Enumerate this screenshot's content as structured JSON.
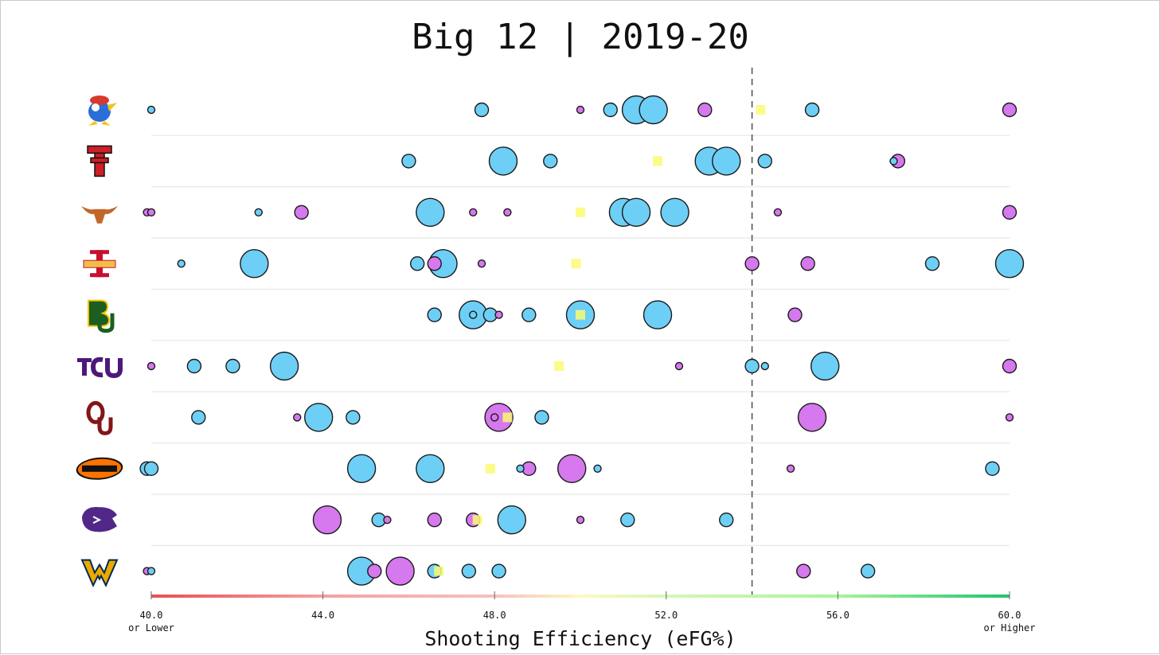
{
  "chart_data": {
    "type": "scatter",
    "title": "Big 12 | 2019-20",
    "xlabel": "Shooting Efficiency (eFG%)",
    "xlim": [
      40.0,
      60.0
    ],
    "ticks": [
      {
        "value": 40.0,
        "label": "40.0",
        "sublabel": "or Lower"
      },
      {
        "value": 44.0,
        "label": "44.0",
        "sublabel": ""
      },
      {
        "value": 48.0,
        "label": "48.0",
        "sublabel": ""
      },
      {
        "value": 52.0,
        "label": "52.0",
        "sublabel": ""
      },
      {
        "value": 56.0,
        "label": "56.0",
        "sublabel": ""
      },
      {
        "value": 60.0,
        "label": "60.0",
        "sublabel": "or Higher"
      }
    ],
    "reference_line": 54.0,
    "colors": {
      "blue": "#6dcff6",
      "purple": "#d678ee",
      "yellow": "#fafa73",
      "gradient": [
        "#e8504f",
        "#f6a0a0",
        "#fdf9c0",
        "#a6f59a",
        "#1fc46e"
      ]
    },
    "teams": [
      {
        "name": "Kansas",
        "logo": "kansas-jayhawk",
        "team_value": 54.2,
        "players": [
          {
            "v": 40.0,
            "s": 1,
            "c": "blue"
          },
          {
            "v": 47.7,
            "s": 2,
            "c": "blue"
          },
          {
            "v": 50.0,
            "s": 1,
            "c": "purple"
          },
          {
            "v": 50.7,
            "s": 2,
            "c": "blue"
          },
          {
            "v": 51.3,
            "s": 4,
            "c": "blue"
          },
          {
            "v": 51.7,
            "s": 4,
            "c": "blue"
          },
          {
            "v": 52.9,
            "s": 2,
            "c": "purple"
          },
          {
            "v": 55.4,
            "s": 2,
            "c": "blue"
          },
          {
            "v": 60.0,
            "s": 2,
            "c": "purple"
          }
        ]
      },
      {
        "name": "Texas Tech",
        "logo": "texas-tech-double-t",
        "team_value": 51.8,
        "players": [
          {
            "v": 46.0,
            "s": 2,
            "c": "blue"
          },
          {
            "v": 48.2,
            "s": 4,
            "c": "blue"
          },
          {
            "v": 49.3,
            "s": 2,
            "c": "blue"
          },
          {
            "v": 53.0,
            "s": 4,
            "c": "blue"
          },
          {
            "v": 53.4,
            "s": 4,
            "c": "blue"
          },
          {
            "v": 54.3,
            "s": 2,
            "c": "blue"
          },
          {
            "v": 57.4,
            "s": 2,
            "c": "purple"
          },
          {
            "v": 57.3,
            "s": 1,
            "c": "blue"
          }
        ]
      },
      {
        "name": "Texas",
        "logo": "texas-longhorn",
        "team_value": 50.0,
        "players": [
          {
            "v": 39.9,
            "s": 1,
            "c": "purple"
          },
          {
            "v": 40.0,
            "s": 1,
            "c": "purple"
          },
          {
            "v": 42.5,
            "s": 1,
            "c": "blue"
          },
          {
            "v": 43.5,
            "s": 2,
            "c": "purple"
          },
          {
            "v": 46.5,
            "s": 4,
            "c": "blue"
          },
          {
            "v": 47.5,
            "s": 1,
            "c": "purple"
          },
          {
            "v": 48.3,
            "s": 1,
            "c": "purple"
          },
          {
            "v": 51.0,
            "s": 4,
            "c": "blue"
          },
          {
            "v": 51.3,
            "s": 4,
            "c": "blue"
          },
          {
            "v": 52.2,
            "s": 4,
            "c": "blue"
          },
          {
            "v": 54.6,
            "s": 1,
            "c": "purple"
          },
          {
            "v": 60.0,
            "s": 2,
            "c": "purple"
          }
        ]
      },
      {
        "name": "Iowa State",
        "logo": "iowa-state-logo",
        "team_value": 49.9,
        "players": [
          {
            "v": 40.7,
            "s": 1,
            "c": "blue"
          },
          {
            "v": 42.4,
            "s": 4,
            "c": "blue"
          },
          {
            "v": 46.2,
            "s": 2,
            "c": "blue"
          },
          {
            "v": 46.8,
            "s": 4,
            "c": "blue"
          },
          {
            "v": 46.6,
            "s": 2,
            "c": "purple"
          },
          {
            "v": 47.7,
            "s": 1,
            "c": "purple"
          },
          {
            "v": 54.0,
            "s": 2,
            "c": "purple"
          },
          {
            "v": 55.3,
            "s": 2,
            "c": "purple"
          },
          {
            "v": 58.2,
            "s": 2,
            "c": "blue"
          },
          {
            "v": 60.0,
            "s": 4,
            "c": "blue"
          }
        ]
      },
      {
        "name": "Baylor",
        "logo": "baylor-bu",
        "team_value": 50.0,
        "players": [
          {
            "v": 46.6,
            "s": 2,
            "c": "blue"
          },
          {
            "v": 47.5,
            "s": 4,
            "c": "blue"
          },
          {
            "v": 47.5,
            "s": 1,
            "c": "blue"
          },
          {
            "v": 47.9,
            "s": 2,
            "c": "blue"
          },
          {
            "v": 48.1,
            "s": 1,
            "c": "purple"
          },
          {
            "v": 48.8,
            "s": 2,
            "c": "blue"
          },
          {
            "v": 50.0,
            "s": 4,
            "c": "blue"
          },
          {
            "v": 51.8,
            "s": 4,
            "c": "blue"
          },
          {
            "v": 55.0,
            "s": 2,
            "c": "purple"
          }
        ]
      },
      {
        "name": "TCU",
        "logo": "tcu-wordmark",
        "team_value": 49.5,
        "players": [
          {
            "v": 40.0,
            "s": 1,
            "c": "purple"
          },
          {
            "v": 41.0,
            "s": 2,
            "c": "blue"
          },
          {
            "v": 41.9,
            "s": 2,
            "c": "blue"
          },
          {
            "v": 43.1,
            "s": 4,
            "c": "blue"
          },
          {
            "v": 52.3,
            "s": 1,
            "c": "purple"
          },
          {
            "v": 54.0,
            "s": 2,
            "c": "blue"
          },
          {
            "v": 54.3,
            "s": 1,
            "c": "blue"
          },
          {
            "v": 55.7,
            "s": 4,
            "c": "blue"
          },
          {
            "v": 60.0,
            "s": 2,
            "c": "purple"
          }
        ]
      },
      {
        "name": "Oklahoma",
        "logo": "oklahoma-ou",
        "team_value": 48.3,
        "players": [
          {
            "v": 41.1,
            "s": 2,
            "c": "blue"
          },
          {
            "v": 43.4,
            "s": 1,
            "c": "purple"
          },
          {
            "v": 43.9,
            "s": 4,
            "c": "blue"
          },
          {
            "v": 44.7,
            "s": 2,
            "c": "blue"
          },
          {
            "v": 48.1,
            "s": 4,
            "c": "purple"
          },
          {
            "v": 48.0,
            "s": 1,
            "c": "purple"
          },
          {
            "v": 49.1,
            "s": 2,
            "c": "blue"
          },
          {
            "v": 55.4,
            "s": 4,
            "c": "purple"
          },
          {
            "v": 60.0,
            "s": 1,
            "c": "purple"
          }
        ]
      },
      {
        "name": "Oklahoma State",
        "logo": "oklahoma-state-osu",
        "team_value": 47.9,
        "players": [
          {
            "v": 39.9,
            "s": 2,
            "c": "blue"
          },
          {
            "v": 40.0,
            "s": 2,
            "c": "blue"
          },
          {
            "v": 44.9,
            "s": 4,
            "c": "blue"
          },
          {
            "v": 46.5,
            "s": 4,
            "c": "blue"
          },
          {
            "v": 48.6,
            "s": 1,
            "c": "blue"
          },
          {
            "v": 48.8,
            "s": 2,
            "c": "purple"
          },
          {
            "v": 49.8,
            "s": 4,
            "c": "purple"
          },
          {
            "v": 50.4,
            "s": 1,
            "c": "blue"
          },
          {
            "v": 54.9,
            "s": 1,
            "c": "purple"
          },
          {
            "v": 59.6,
            "s": 2,
            "c": "blue"
          }
        ]
      },
      {
        "name": "Kansas State",
        "logo": "kansas-state-wildcat",
        "team_value": 47.6,
        "players": [
          {
            "v": 44.1,
            "s": 4,
            "c": "purple"
          },
          {
            "v": 45.3,
            "s": 2,
            "c": "blue"
          },
          {
            "v": 45.5,
            "s": 1,
            "c": "purple"
          },
          {
            "v": 46.6,
            "s": 2,
            "c": "purple"
          },
          {
            "v": 47.5,
            "s": 2,
            "c": "purple"
          },
          {
            "v": 48.4,
            "s": 4,
            "c": "blue"
          },
          {
            "v": 50.0,
            "s": 1,
            "c": "purple"
          },
          {
            "v": 51.1,
            "s": 2,
            "c": "blue"
          },
          {
            "v": 53.4,
            "s": 2,
            "c": "blue"
          }
        ]
      },
      {
        "name": "West Virginia",
        "logo": "west-virginia-wv",
        "team_value": 46.7,
        "players": [
          {
            "v": 39.9,
            "s": 1,
            "c": "purple"
          },
          {
            "v": 40.0,
            "s": 1,
            "c": "blue"
          },
          {
            "v": 44.9,
            "s": 4,
            "c": "blue"
          },
          {
            "v": 45.2,
            "s": 2,
            "c": "purple"
          },
          {
            "v": 45.8,
            "s": 4,
            "c": "purple"
          },
          {
            "v": 46.6,
            "s": 2,
            "c": "blue"
          },
          {
            "v": 47.4,
            "s": 2,
            "c": "blue"
          },
          {
            "v": 48.1,
            "s": 2,
            "c": "blue"
          },
          {
            "v": 55.2,
            "s": 2,
            "c": "purple"
          },
          {
            "v": 56.7,
            "s": 2,
            "c": "blue"
          }
        ]
      }
    ]
  }
}
